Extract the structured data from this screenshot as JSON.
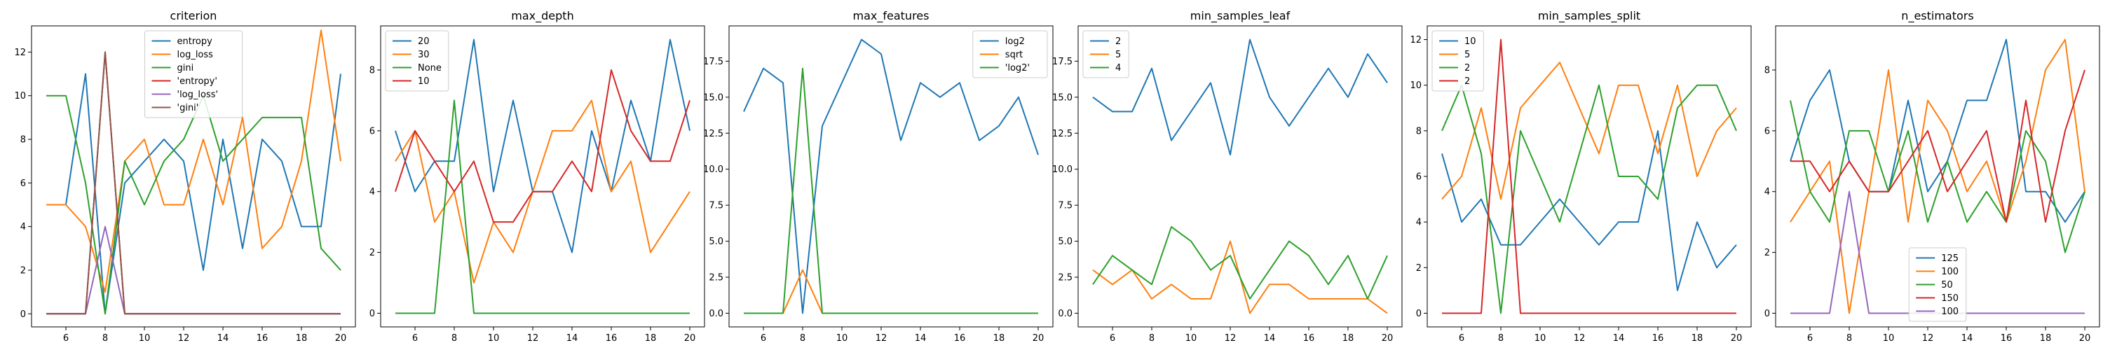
{
  "colors": {
    "C0": "#1f77b4",
    "C1": "#ff7f0e",
    "C2": "#2ca02c",
    "C3": "#d62728",
    "C4": "#9467bd",
    "C5": "#8c564b"
  },
  "chart_data": [
    {
      "type": "line",
      "title": "criterion",
      "x": [
        5,
        6,
        7,
        8,
        9,
        10,
        11,
        12,
        13,
        14,
        15,
        16,
        17,
        18,
        19,
        20
      ],
      "xticks": [
        6,
        8,
        10,
        12,
        14,
        16,
        18,
        20
      ],
      "ylim": [
        -0.6,
        13.2
      ],
      "yticks": [
        0,
        2,
        4,
        6,
        8,
        10,
        12
      ],
      "ytick_labels": [
        "0",
        "2",
        "4",
        "6",
        "8",
        "10",
        "12"
      ],
      "legend": {
        "position": "upper center"
      },
      "series": [
        {
          "name": "entropy",
          "color": "C0",
          "values": [
            5,
            5,
            11,
            0,
            6,
            7,
            8,
            7,
            2,
            8,
            3,
            8,
            7,
            4,
            4,
            11
          ]
        },
        {
          "name": "log_loss",
          "color": "C1",
          "values": [
            5,
            5,
            4,
            1,
            7,
            8,
            5,
            5,
            8,
            5,
            9,
            3,
            4,
            7,
            13,
            7
          ]
        },
        {
          "name": "gini",
          "color": "C2",
          "values": [
            10,
            10,
            6,
            0,
            7,
            5,
            7,
            8,
            10,
            7,
            8,
            9,
            9,
            9,
            3,
            2
          ]
        },
        {
          "name": "'entropy'",
          "color": "C3",
          "values": [
            0,
            0,
            0,
            12,
            0,
            0,
            0,
            0,
            0,
            0,
            0,
            0,
            0,
            0,
            0,
            0
          ]
        },
        {
          "name": "'log_loss'",
          "color": "C4",
          "values": [
            0,
            0,
            0,
            4,
            0,
            0,
            0,
            0,
            0,
            0,
            0,
            0,
            0,
            0,
            0,
            0
          ]
        },
        {
          "name": "'gini'",
          "color": "C5",
          "values": [
            0,
            0,
            0,
            12,
            0,
            0,
            0,
            0,
            0,
            0,
            0,
            0,
            0,
            0,
            0,
            0
          ]
        }
      ]
    },
    {
      "type": "line",
      "title": "max_depth",
      "x": [
        5,
        6,
        7,
        8,
        9,
        10,
        11,
        12,
        13,
        14,
        15,
        16,
        17,
        18,
        19,
        20
      ],
      "xticks": [
        6,
        8,
        10,
        12,
        14,
        16,
        18,
        20
      ],
      "ylim": [
        -0.45,
        9.45
      ],
      "yticks": [
        0,
        2,
        4,
        6,
        8
      ],
      "ytick_labels": [
        "0",
        "2",
        "4",
        "6",
        "8"
      ],
      "legend": {
        "position": "upper left"
      },
      "series": [
        {
          "name": "20",
          "color": "C0",
          "values": [
            6,
            4,
            5,
            5,
            9,
            4,
            7,
            4,
            4,
            2,
            6,
            4,
            7,
            5,
            9,
            6
          ]
        },
        {
          "name": "30",
          "color": "C1",
          "values": [
            5,
            6,
            3,
            4,
            1,
            3,
            2,
            4,
            6,
            6,
            7,
            4,
            5,
            2,
            3,
            4
          ]
        },
        {
          "name": "None",
          "color": "C2",
          "values": [
            0,
            0,
            0,
            7,
            0,
            0,
            0,
            0,
            0,
            0,
            0,
            0,
            0,
            0,
            0,
            0
          ]
        },
        {
          "name": "10",
          "color": "C3",
          "values": [
            4,
            6,
            5,
            4,
            5,
            3,
            3,
            4,
            4,
            5,
            4,
            8,
            6,
            5,
            5,
            7
          ]
        }
      ]
    },
    {
      "type": "line",
      "title": "max_features",
      "x": [
        5,
        6,
        7,
        8,
        9,
        10,
        11,
        12,
        13,
        14,
        15,
        16,
        17,
        18,
        19,
        20
      ],
      "xticks": [
        6,
        8,
        10,
        12,
        14,
        16,
        18,
        20
      ],
      "ylim": [
        -0.95,
        19.95
      ],
      "yticks": [
        0,
        2.5,
        5,
        7.5,
        10,
        12.5,
        15,
        17.5
      ],
      "ytick_labels": [
        "0.0",
        "2.5",
        "5.0",
        "7.5",
        "10.0",
        "12.5",
        "15.0",
        "17.5"
      ],
      "legend": {
        "position": "upper right"
      },
      "series": [
        {
          "name": "log2",
          "color": "C0",
          "values": [
            14,
            17,
            16,
            0,
            13,
            16,
            19,
            18,
            12,
            16,
            15,
            16,
            12,
            13,
            15,
            11
          ]
        },
        {
          "name": "sqrt",
          "color": "C1",
          "values": [
            0,
            0,
            0,
            3,
            0,
            0,
            0,
            0,
            0,
            0,
            0,
            0,
            0,
            0,
            0,
            0
          ]
        },
        {
          "name": "'log2'",
          "color": "C2",
          "values": [
            0,
            0,
            0,
            17,
            0,
            0,
            0,
            0,
            0,
            0,
            0,
            0,
            0,
            0,
            0,
            0
          ]
        }
      ]
    },
    {
      "type": "line",
      "title": "min_samples_leaf",
      "x": [
        5,
        6,
        7,
        8,
        9,
        10,
        11,
        12,
        13,
        14,
        15,
        16,
        17,
        18,
        19,
        20
      ],
      "xticks": [
        6,
        8,
        10,
        12,
        14,
        16,
        18,
        20
      ],
      "ylim": [
        -0.95,
        19.95
      ],
      "yticks": [
        0,
        2.5,
        5,
        7.5,
        10,
        12.5,
        15,
        17.5
      ],
      "ytick_labels": [
        "0.0",
        "2.5",
        "5.0",
        "7.5",
        "10.0",
        "12.5",
        "15.0",
        "17.5"
      ],
      "legend": {
        "position": "upper left"
      },
      "series": [
        {
          "name": "2",
          "color": "C0",
          "values": [
            15,
            14,
            14,
            17,
            12,
            14,
            16,
            11,
            19,
            15,
            13,
            15,
            17,
            15,
            18,
            16
          ]
        },
        {
          "name": "5",
          "color": "C1",
          "values": [
            3,
            2,
            3,
            1,
            2,
            1,
            1,
            5,
            0,
            2,
            2,
            1,
            1,
            1,
            1,
            0
          ]
        },
        {
          "name": "4",
          "color": "C2",
          "values": [
            2,
            4,
            3,
            2,
            6,
            5,
            3,
            4,
            1,
            3,
            5,
            4,
            2,
            4,
            1,
            4
          ]
        }
      ]
    },
    {
      "type": "line",
      "title": "min_samples_split",
      "x": [
        5,
        6,
        7,
        8,
        9,
        10,
        11,
        12,
        13,
        14,
        15,
        16,
        17,
        18,
        19,
        20
      ],
      "xticks": [
        6,
        8,
        10,
        12,
        14,
        16,
        18,
        20
      ],
      "ylim": [
        -0.6,
        12.6
      ],
      "yticks": [
        0,
        2,
        4,
        6,
        8,
        10,
        12
      ],
      "ytick_labels": [
        "0",
        "2",
        "4",
        "6",
        "8",
        "10",
        "12"
      ],
      "legend": {
        "position": "upper left"
      },
      "series": [
        {
          "name": "10",
          "color": "C0",
          "values": [
            7,
            4,
            5,
            3,
            3,
            4,
            5,
            4,
            3,
            4,
            4,
            8,
            1,
            4,
            2,
            3
          ]
        },
        {
          "name": "5",
          "color": "C1",
          "values": [
            5,
            6,
            9,
            5,
            9,
            10,
            11,
            9,
            7,
            10,
            10,
            7,
            10,
            6,
            8,
            9
          ]
        },
        {
          "name": "2",
          "color": "C2",
          "values": [
            8,
            10,
            7,
            0,
            8,
            6,
            4,
            7,
            10,
            6,
            6,
            5,
            9,
            10,
            10,
            8
          ]
        },
        {
          "name": "2",
          "color": "C3",
          "values": [
            0,
            0,
            0,
            12,
            0,
            0,
            0,
            0,
            0,
            0,
            0,
            0,
            0,
            0,
            0,
            0
          ]
        }
      ]
    },
    {
      "type": "line",
      "title": "n_estimators",
      "x": [
        5,
        6,
        7,
        8,
        9,
        10,
        11,
        12,
        13,
        14,
        15,
        16,
        17,
        18,
        19,
        20
      ],
      "xticks": [
        6,
        8,
        10,
        12,
        14,
        16,
        18,
        20
      ],
      "ylim": [
        -0.45,
        9.45
      ],
      "yticks": [
        0,
        2,
        4,
        6,
        8
      ],
      "ytick_labels": [
        "0",
        "2",
        "4",
        "6",
        "8"
      ],
      "legend": {
        "position": "lower center"
      },
      "series": [
        {
          "name": "125",
          "color": "C0",
          "values": [
            5,
            7,
            8,
            5,
            4,
            4,
            7,
            4,
            5,
            7,
            7,
            9,
            4,
            4,
            3,
            4
          ]
        },
        {
          "name": "100",
          "color": "C1",
          "values": [
            3,
            4,
            5,
            0,
            4,
            8,
            3,
            7,
            6,
            4,
            5,
            3,
            5,
            8,
            9,
            4
          ]
        },
        {
          "name": "50",
          "color": "C2",
          "values": [
            7,
            4,
            3,
            6,
            6,
            4,
            6,
            3,
            5,
            3,
            4,
            3,
            6,
            5,
            2,
            4
          ]
        },
        {
          "name": "150",
          "color": "C3",
          "values": [
            5,
            5,
            4,
            5,
            4,
            4,
            5,
            6,
            4,
            5,
            6,
            3,
            7,
            3,
            6,
            8
          ]
        },
        {
          "name": "100",
          "color": "C4",
          "values": [
            0,
            0,
            0,
            4,
            0,
            0,
            0,
            0,
            0,
            0,
            0,
            0,
            0,
            0,
            0,
            0
          ]
        }
      ]
    }
  ]
}
